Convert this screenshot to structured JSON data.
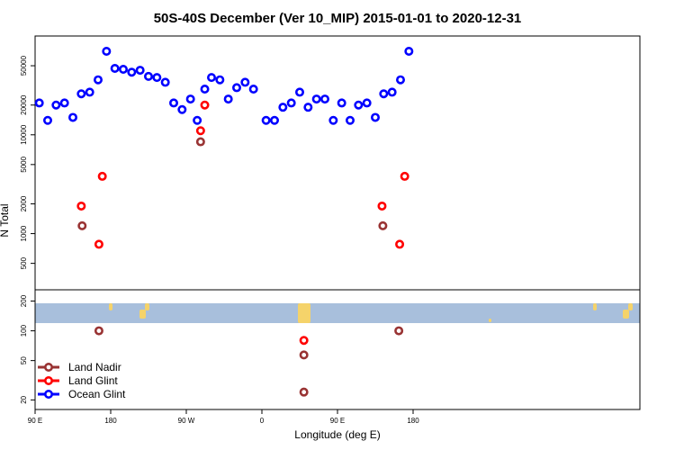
{
  "chart_data": {
    "type": "scatter",
    "title": "50S-40S December (Ver 10_MIP)   2015-01-01 to 2020-12-31",
    "xlabel": "Longitude (deg E)",
    "ylabel": "N Total",
    "x_range": [
      90,
      450
    ],
    "x_ticks": [
      {
        "value": 90,
        "label": "90 E"
      },
      {
        "value": 180,
        "label": "180"
      },
      {
        "value": 270,
        "label": "90 W"
      },
      {
        "value": 360,
        "label": "0"
      },
      {
        "value": 450,
        "label": "90 E"
      },
      {
        "value": 540,
        "label": "180"
      }
    ],
    "upper_panel": {
      "y_scale": "log",
      "y_range": [
        270,
        100000
      ],
      "y_ticks": [
        500,
        1000,
        2000,
        5000,
        10000,
        20000,
        50000
      ],
      "series": [
        {
          "name": "Ocean Glint",
          "color": "#0000ff",
          "points": [
            [
              95,
              21000
            ],
            [
              105,
              14000
            ],
            [
              115,
              20000
            ],
            [
              125,
              21000
            ],
            [
              135,
              15000
            ],
            [
              145,
              26000
            ],
            [
              155,
              27000
            ],
            [
              165,
              36000
            ],
            [
              175,
              70000
            ],
            [
              185,
              47000
            ],
            [
              195,
              46000
            ],
            [
              205,
              43000
            ],
            [
              215,
              45000
            ],
            [
              225,
              39000
            ],
            [
              235,
              38000
            ],
            [
              245,
              34000
            ],
            [
              255,
              21000
            ],
            [
              265,
              18000
            ],
            [
              275,
              23000
            ],
            [
              283,
              14000
            ],
            [
              292,
              29000
            ],
            [
              300,
              38000
            ],
            [
              310,
              36000
            ],
            [
              320,
              23000
            ],
            [
              330,
              30000
            ],
            [
              340,
              34000
            ],
            [
              350,
              29000
            ],
            [
              365,
              14000
            ],
            [
              375,
              14000
            ],
            [
              385,
              19000
            ],
            [
              395,
              21000
            ],
            [
              405,
              27000
            ],
            [
              415,
              19000
            ],
            [
              425,
              23000
            ],
            [
              435,
              23000
            ],
            [
              445,
              14000
            ],
            [
              455,
              21000
            ],
            [
              465,
              14000
            ],
            [
              475,
              20000
            ],
            [
              485,
              21000
            ],
            [
              495,
              15000
            ],
            [
              505,
              26000
            ],
            [
              515,
              27000
            ],
            [
              525,
              36000
            ],
            [
              535,
              70000
            ]
          ]
        },
        {
          "name": "Land Glint",
          "color": "#ff0000",
          "points": [
            [
              145,
              1900
            ],
            [
              166,
              780
            ],
            [
              170,
              3800
            ],
            [
              287,
              11000
            ],
            [
              292,
              20000
            ],
            [
              524,
              780
            ],
            [
              530,
              3800
            ],
            [
              503,
              1900
            ]
          ]
        },
        {
          "name": "Land Nadir",
          "color": "#993333",
          "points": [
            [
              146,
              1200
            ],
            [
              287,
              8500
            ],
            [
              504,
              1200
            ]
          ]
        }
      ]
    },
    "lower_panel": {
      "y_scale": "log",
      "y_range": [
        16,
        260
      ],
      "y_ticks": [
        20,
        50,
        100,
        200
      ],
      "series": [
        {
          "name": "Land Glint",
          "color": "#ff0000",
          "points": [
            [
              410,
              80
            ]
          ]
        },
        {
          "name": "Land Nadir",
          "color": "#993333",
          "points": [
            [
              166,
              100
            ],
            [
              410,
              57
            ],
            [
              410,
              24
            ],
            [
              523,
              100
            ]
          ]
        }
      ],
      "map_band": {
        "ocean_color": "#a8bfdc",
        "land_color": "#f5d36a"
      }
    },
    "legend": {
      "position": "bottom-left",
      "entries": [
        {
          "name": "Land Nadir",
          "color": "#993333"
        },
        {
          "name": "Land Glint",
          "color": "#ff0000"
        },
        {
          "name": "Ocean Glint",
          "color": "#0000ff"
        }
      ]
    },
    "grid": false
  }
}
